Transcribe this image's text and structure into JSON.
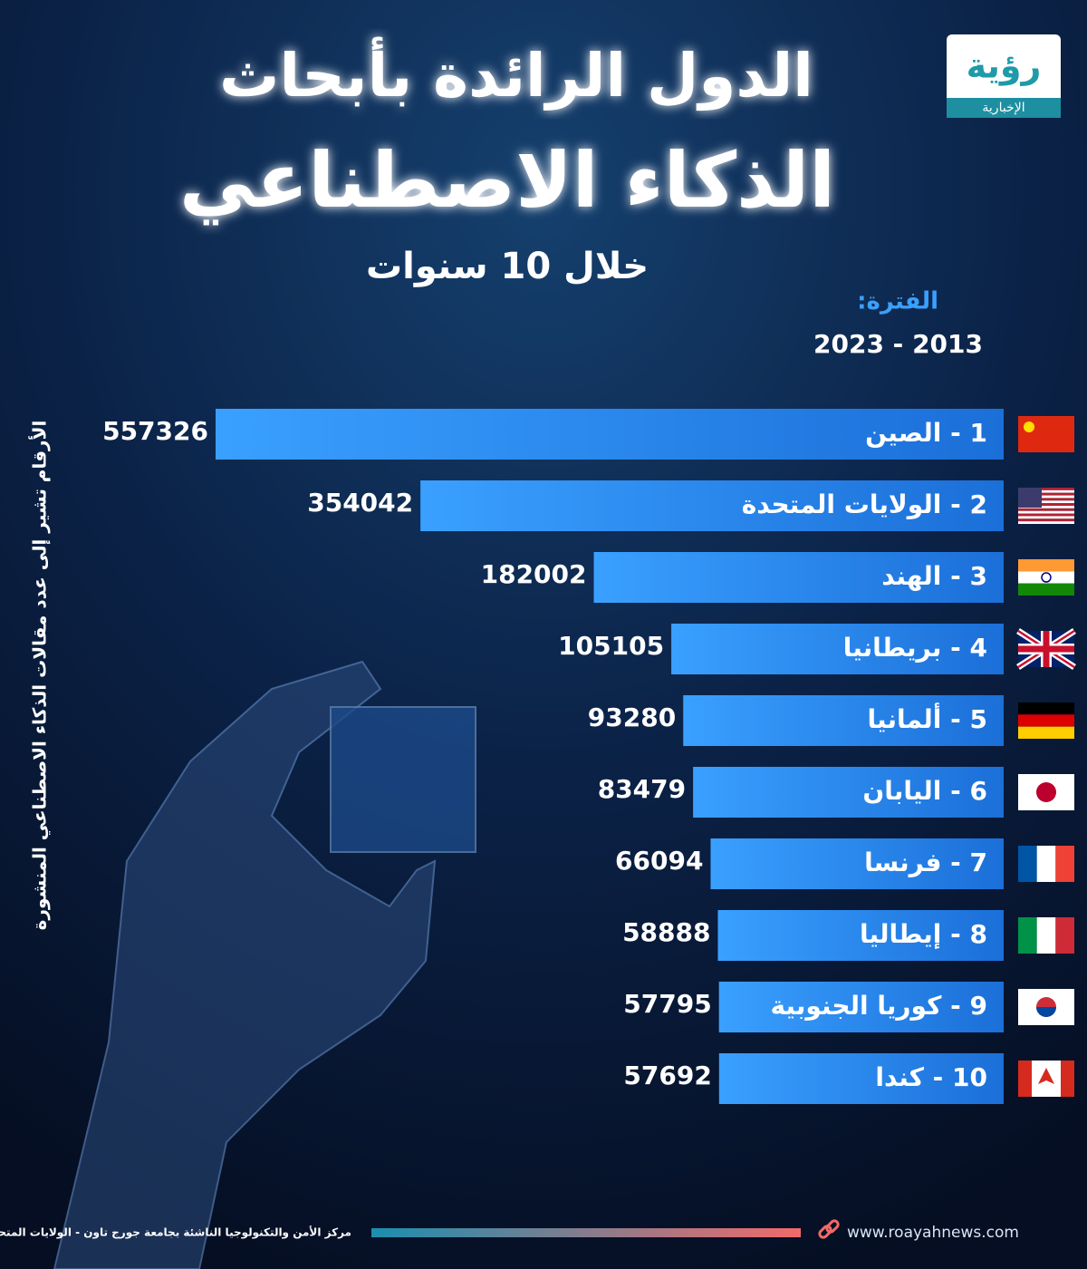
{
  "chart_data": {
    "type": "bar",
    "logo": {
      "name": "رؤية",
      "tagline": "الإخبارية"
    },
    "title_lines": [
      "الدول الرائدة بأبحاث",
      "الذكاء الاصطناعي"
    ],
    "subtitle": "خلال 10 سنوات",
    "period_label": "الفترة:",
    "period": "2013 - 2023",
    "axis_note": "الأرقام تشير إلى عدد مقالات الذكاء الاصطناعي المنشورة",
    "categories": [
      "1 - الصين",
      "2 - الولايات المتحدة",
      "3 - الهند",
      "4 - بريطانيا",
      "5 - ألمانيا",
      "6 - اليابان",
      "7 - فرنسا",
      "8 - إيطاليا",
      "9 - كوريا الجنوبية",
      "10 - كندا"
    ],
    "values": [
      557326,
      354042,
      182002,
      105105,
      93280,
      83479,
      66094,
      58888,
      57795,
      57692
    ],
    "color": "#2a8cf0",
    "source": "مركز الأمن والتكنولوجيا الناشئة بجامعة جورج تاون - الولايات المتحدة",
    "website": "www.roayahnews.com"
  }
}
